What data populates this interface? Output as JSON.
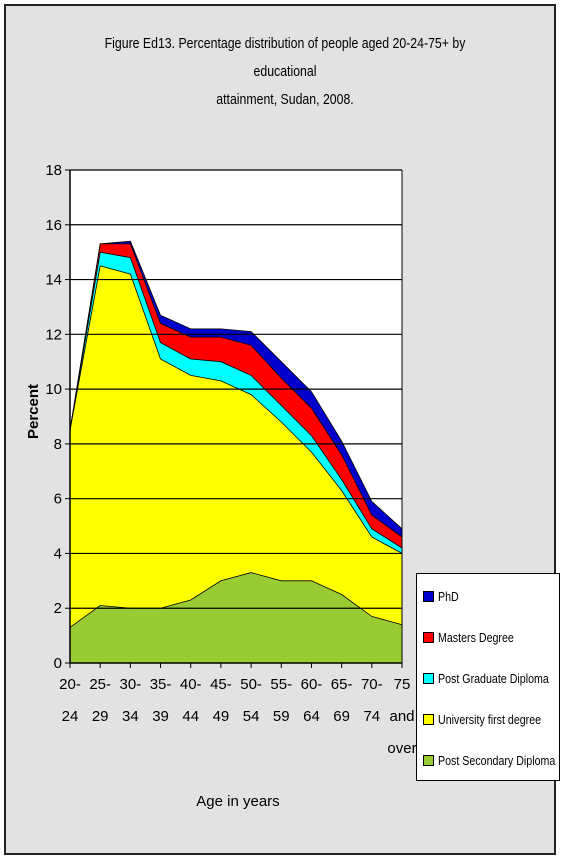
{
  "chart_data": {
    "type": "area",
    "stacked": true,
    "title": "Figure Ed13. Percentage distribution of people aged 20-24-75+ by educational attainment, Sudan, 2008.",
    "title_lines": [
      "Figure Ed13. Percentage distribution of people aged 20-24-75+ by educational",
      "attainment, Sudan, 2008."
    ],
    "xlabel": "Age in years",
    "ylabel": "Percent",
    "ylim": [
      0,
      18
    ],
    "yticks": [
      "0",
      "2",
      "4",
      "6",
      "8",
      "10",
      "12",
      "14",
      "16",
      "18"
    ],
    "categories": [
      [
        "20-",
        "24"
      ],
      [
        "25-",
        "29"
      ],
      [
        "30-",
        "34"
      ],
      [
        "35-",
        "39"
      ],
      [
        "40-",
        "44"
      ],
      [
        "45-",
        "49"
      ],
      [
        "50-",
        "54"
      ],
      [
        "55-",
        "59"
      ],
      [
        "60-",
        "64"
      ],
      [
        "65-",
        "69"
      ],
      [
        "70-",
        "74"
      ],
      [
        "75",
        "and",
        "over"
      ]
    ],
    "grid": "horizontal",
    "legend_position": "bottom-right",
    "series": [
      {
        "name": "Post Secondary Diploma",
        "color": "#99CC33",
        "values": [
          1.3,
          2.1,
          2.0,
          2.0,
          2.3,
          3.0,
          3.3,
          3.0,
          3.0,
          2.5,
          1.7,
          1.4
        ]
      },
      {
        "name": "University first degree",
        "color": "#FFFF00",
        "values": [
          7.2,
          12.4,
          12.2,
          9.1,
          8.2,
          7.3,
          6.5,
          5.8,
          4.7,
          3.8,
          2.9,
          2.6
        ]
      },
      {
        "name": "Post Graduate Diploma",
        "color": "#00FFFF",
        "values": [
          0.0,
          0.5,
          0.6,
          0.6,
          0.6,
          0.7,
          0.7,
          0.6,
          0.6,
          0.4,
          0.3,
          0.2
        ]
      },
      {
        "name": "Masters Degree",
        "color": "#FF0000",
        "values": [
          0.0,
          0.3,
          0.5,
          0.7,
          0.8,
          0.9,
          1.1,
          1.0,
          1.0,
          0.9,
          0.5,
          0.4
        ]
      },
      {
        "name": "PhD",
        "color": "#0000CC",
        "values": [
          0.0,
          0.0,
          0.1,
          0.3,
          0.3,
          0.3,
          0.5,
          0.6,
          0.6,
          0.5,
          0.5,
          0.3
        ]
      }
    ],
    "legend_order": [
      "PhD",
      "Masters Degree",
      "Post Graduate Diploma",
      "University first degree",
      "Post Secondary Diploma"
    ]
  }
}
